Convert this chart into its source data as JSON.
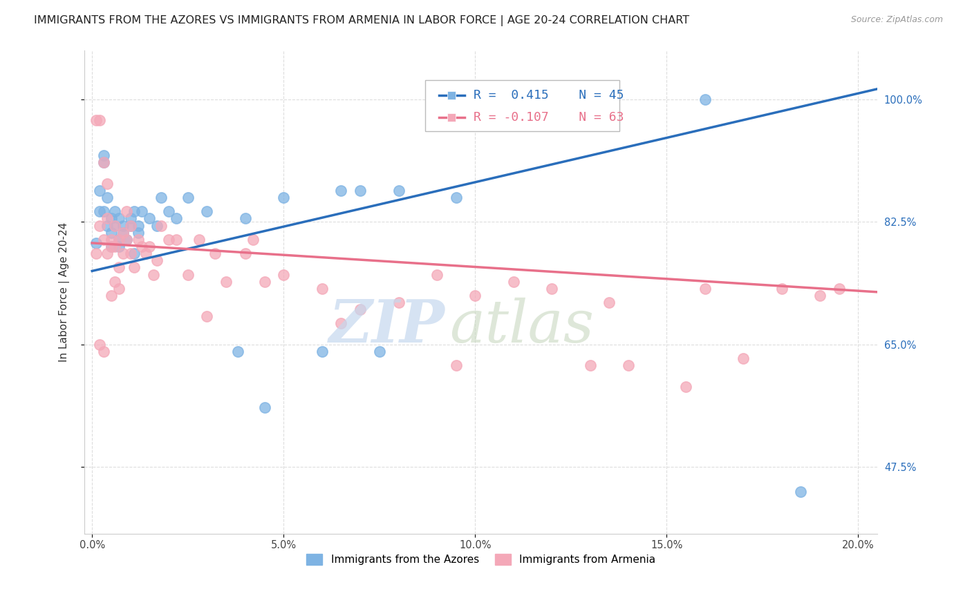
{
  "title": "IMMIGRANTS FROM THE AZORES VS IMMIGRANTS FROM ARMENIA IN LABOR FORCE | AGE 20-24 CORRELATION CHART",
  "source": "Source: ZipAtlas.com",
  "ylabel": "In Labor Force | Age 20-24",
  "x_tick_labels": [
    "0.0%",
    "5.0%",
    "10.0%",
    "15.0%",
    "20.0%"
  ],
  "x_tick_vals": [
    0.0,
    0.05,
    0.1,
    0.15,
    0.2
  ],
  "y_tick_labels": [
    "47.5%",
    "65.0%",
    "82.5%",
    "100.0%"
  ],
  "y_tick_vals": [
    0.475,
    0.65,
    0.825,
    1.0
  ],
  "xlim": [
    -0.002,
    0.205
  ],
  "ylim": [
    0.38,
    1.07
  ],
  "azores_color": "#7EB3E3",
  "armenia_color": "#F4A8B8",
  "azores_line_color": "#2A6EBB",
  "armenia_line_color": "#E8708A",
  "legend_R_azores": "R =  0.415",
  "legend_N_azores": "N = 45",
  "legend_R_armenia": "R = -0.107",
  "legend_N_armenia": "N = 63",
  "azores_line_x": [
    0.0,
    0.205
  ],
  "azores_line_y": [
    0.755,
    1.015
  ],
  "armenia_line_x": [
    0.0,
    0.205
  ],
  "armenia_line_y": [
    0.795,
    0.725
  ],
  "azores_scatter_x": [
    0.001,
    0.002,
    0.002,
    0.003,
    0.003,
    0.003,
    0.004,
    0.004,
    0.005,
    0.005,
    0.005,
    0.006,
    0.006,
    0.007,
    0.007,
    0.007,
    0.008,
    0.008,
    0.009,
    0.01,
    0.01,
    0.011,
    0.011,
    0.012,
    0.012,
    0.013,
    0.015,
    0.017,
    0.018,
    0.02,
    0.022,
    0.025,
    0.03,
    0.038,
    0.04,
    0.045,
    0.05,
    0.06,
    0.065,
    0.07,
    0.075,
    0.08,
    0.095,
    0.16,
    0.185
  ],
  "azores_scatter_y": [
    0.795,
    0.84,
    0.87,
    0.91,
    0.92,
    0.84,
    0.82,
    0.86,
    0.81,
    0.83,
    0.79,
    0.82,
    0.84,
    0.8,
    0.83,
    0.79,
    0.82,
    0.81,
    0.8,
    0.83,
    0.82,
    0.84,
    0.78,
    0.82,
    0.81,
    0.84,
    0.83,
    0.82,
    0.86,
    0.84,
    0.83,
    0.86,
    0.84,
    0.64,
    0.83,
    0.56,
    0.86,
    0.64,
    0.87,
    0.87,
    0.64,
    0.87,
    0.86,
    1.0,
    0.44
  ],
  "armenia_scatter_x": [
    0.001,
    0.001,
    0.002,
    0.002,
    0.003,
    0.003,
    0.004,
    0.004,
    0.005,
    0.005,
    0.005,
    0.006,
    0.006,
    0.006,
    0.007,
    0.007,
    0.007,
    0.008,
    0.008,
    0.009,
    0.009,
    0.01,
    0.01,
    0.011,
    0.012,
    0.013,
    0.014,
    0.015,
    0.016,
    0.017,
    0.018,
    0.02,
    0.022,
    0.025,
    0.028,
    0.03,
    0.032,
    0.035,
    0.04,
    0.042,
    0.045,
    0.05,
    0.06,
    0.065,
    0.07,
    0.08,
    0.09,
    0.095,
    0.1,
    0.11,
    0.12,
    0.13,
    0.135,
    0.14,
    0.155,
    0.16,
    0.17,
    0.18,
    0.19,
    0.195,
    0.002,
    0.003,
    0.004
  ],
  "armenia_scatter_y": [
    0.97,
    0.78,
    0.97,
    0.82,
    0.91,
    0.8,
    0.88,
    0.83,
    0.8,
    0.79,
    0.72,
    0.79,
    0.74,
    0.82,
    0.76,
    0.8,
    0.73,
    0.81,
    0.78,
    0.84,
    0.8,
    0.82,
    0.78,
    0.76,
    0.8,
    0.79,
    0.78,
    0.79,
    0.75,
    0.77,
    0.82,
    0.8,
    0.8,
    0.75,
    0.8,
    0.69,
    0.78,
    0.74,
    0.78,
    0.8,
    0.74,
    0.75,
    0.73,
    0.68,
    0.7,
    0.71,
    0.75,
    0.62,
    0.72,
    0.74,
    0.73,
    0.62,
    0.71,
    0.62,
    0.59,
    0.73,
    0.63,
    0.73,
    0.72,
    0.73,
    0.65,
    0.64,
    0.78
  ],
  "grid_color": "#DDDDDD",
  "title_fontsize": 11.5,
  "axis_label_fontsize": 11,
  "tick_fontsize": 10.5,
  "legend_fontsize": 13
}
